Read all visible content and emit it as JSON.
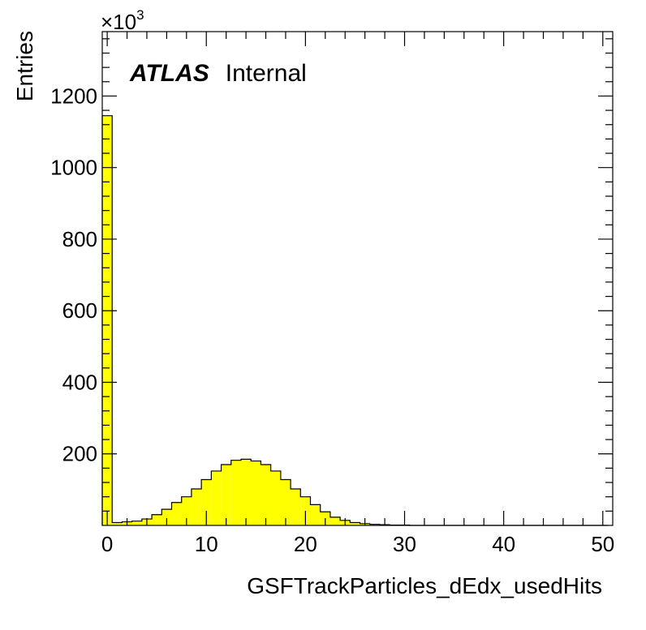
{
  "chart_data": {
    "type": "bar",
    "title": "",
    "xlabel": "GSFTrackParticles_dEdx_usedHits",
    "ylabel": "Entries",
    "y_multiplier": "×10",
    "y_multiplier_exp": "3",
    "xlim": [
      -0.5,
      51.0
    ],
    "ylim": [
      0,
      1380
    ],
    "x_ticks": [
      0,
      10,
      20,
      30,
      40,
      50
    ],
    "x_tick_labels": [
      "0",
      "10",
      "20",
      "30",
      "40",
      "50"
    ],
    "y_ticks": [
      200,
      400,
      600,
      800,
      1000,
      1200
    ],
    "y_tick_labels": [
      "200",
      "400",
      "600",
      "800",
      "1000",
      "1200"
    ],
    "bin_edges": [
      -0.5,
      0.5,
      1.5,
      2.5,
      3.5,
      4.5,
      5.5,
      6.5,
      7.5,
      8.5,
      9.5,
      10.5,
      11.5,
      12.5,
      13.5,
      14.5,
      15.5,
      16.5,
      17.5,
      18.5,
      19.5,
      20.5,
      21.5,
      22.5,
      23.5,
      24.5,
      25.5,
      26.5,
      27.5,
      28.5,
      29.5,
      30.5,
      31.5,
      32.5,
      33.5,
      34.5,
      35.5,
      36.5,
      37.5,
      38.5,
      39.5,
      40.5,
      41.5,
      42.5,
      43.5,
      44.5,
      45.5,
      46.5,
      47.5,
      48.5,
      49.5,
      50.5
    ],
    "values": [
      1145,
      8,
      10,
      12,
      18,
      30,
      45,
      64,
      80,
      102,
      128,
      152,
      170,
      182,
      185,
      180,
      170,
      152,
      128,
      102,
      80,
      58,
      38,
      23,
      14,
      8,
      5,
      3,
      2,
      1,
      1,
      0,
      0,
      0,
      0,
      0,
      0,
      0,
      0,
      0,
      0,
      0,
      0,
      0,
      0,
      0,
      0,
      0,
      0,
      0,
      0
    ],
    "fill_color": "#ffff00",
    "line_color": "#000000",
    "grid": false,
    "legend": "none"
  },
  "annotation": {
    "experiment": "ATLAS",
    "status": "Internal"
  }
}
